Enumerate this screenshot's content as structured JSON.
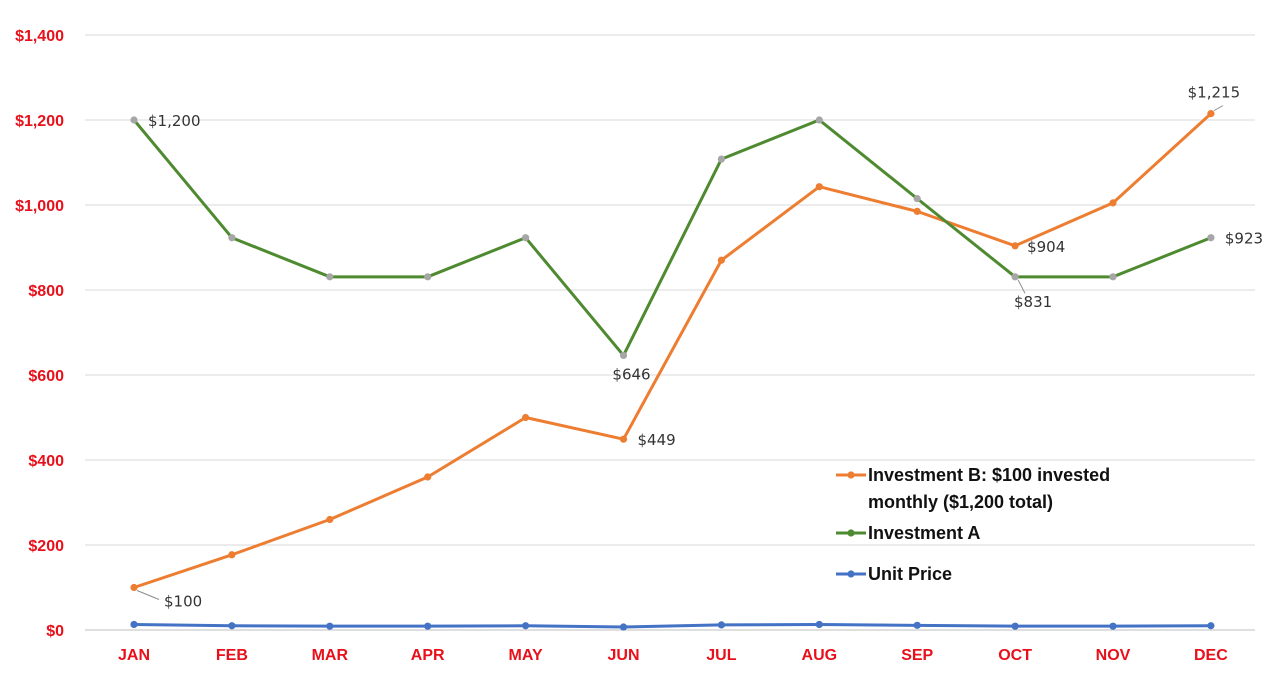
{
  "chart_data": {
    "type": "line",
    "title": "",
    "xlabel": "",
    "ylabel": "",
    "categories": [
      "JAN",
      "FEB",
      "MAR",
      "APR",
      "MAY",
      "JUN",
      "JUL",
      "AUG",
      "SEP",
      "OCT",
      "NOV",
      "DEC"
    ],
    "y_ticks": [
      "$0",
      "$200",
      "$400",
      "$600",
      "$800",
      "$1,000",
      "$1,200",
      "$1,400"
    ],
    "y_tick_values": [
      0,
      200,
      400,
      600,
      800,
      1000,
      1200,
      1400
    ],
    "ylim": [
      0,
      1400
    ],
    "grid": true,
    "legend_position": "bottom-right",
    "series": [
      {
        "name": "Investment B: $100 invested monthly ($1,200 total)",
        "legend_lines": [
          "Investment B: $100 invested",
          "monthly ($1,200 total)"
        ],
        "color": "#ed7d31",
        "marker_color": "#ed7d31",
        "values": [
          100,
          177,
          260,
          360,
          500,
          449,
          870,
          1043,
          985,
          904,
          1005,
          1215
        ]
      },
      {
        "name": "Investment A",
        "legend_lines": [
          "Investment A"
        ],
        "color": "#4e8a2f",
        "marker_color": "#a6a6a6",
        "values": [
          1200,
          923,
          831,
          831,
          923,
          646,
          1108,
          1200,
          1015,
          831,
          831,
          923
        ]
      },
      {
        "name": "Unit Price",
        "legend_lines": [
          "Unit Price"
        ],
        "color": "#4472c4",
        "marker_color": "#4472c4",
        "values": [
          13,
          10,
          9,
          9,
          10,
          7,
          12,
          13,
          11,
          9,
          9,
          10
        ]
      }
    ],
    "data_labels": [
      {
        "series": 1,
        "index": 0,
        "text": "$1,200"
      },
      {
        "series": 0,
        "index": 0,
        "text": "$100"
      },
      {
        "series": 1,
        "index": 5,
        "text": "$646"
      },
      {
        "series": 0,
        "index": 5,
        "text": "$449"
      },
      {
        "series": 0,
        "index": 9,
        "text": "$904"
      },
      {
        "series": 1,
        "index": 9,
        "text": "$831"
      },
      {
        "series": 0,
        "index": 11,
        "text": "$1,215"
      },
      {
        "series": 1,
        "index": 11,
        "text": "$923"
      }
    ]
  }
}
